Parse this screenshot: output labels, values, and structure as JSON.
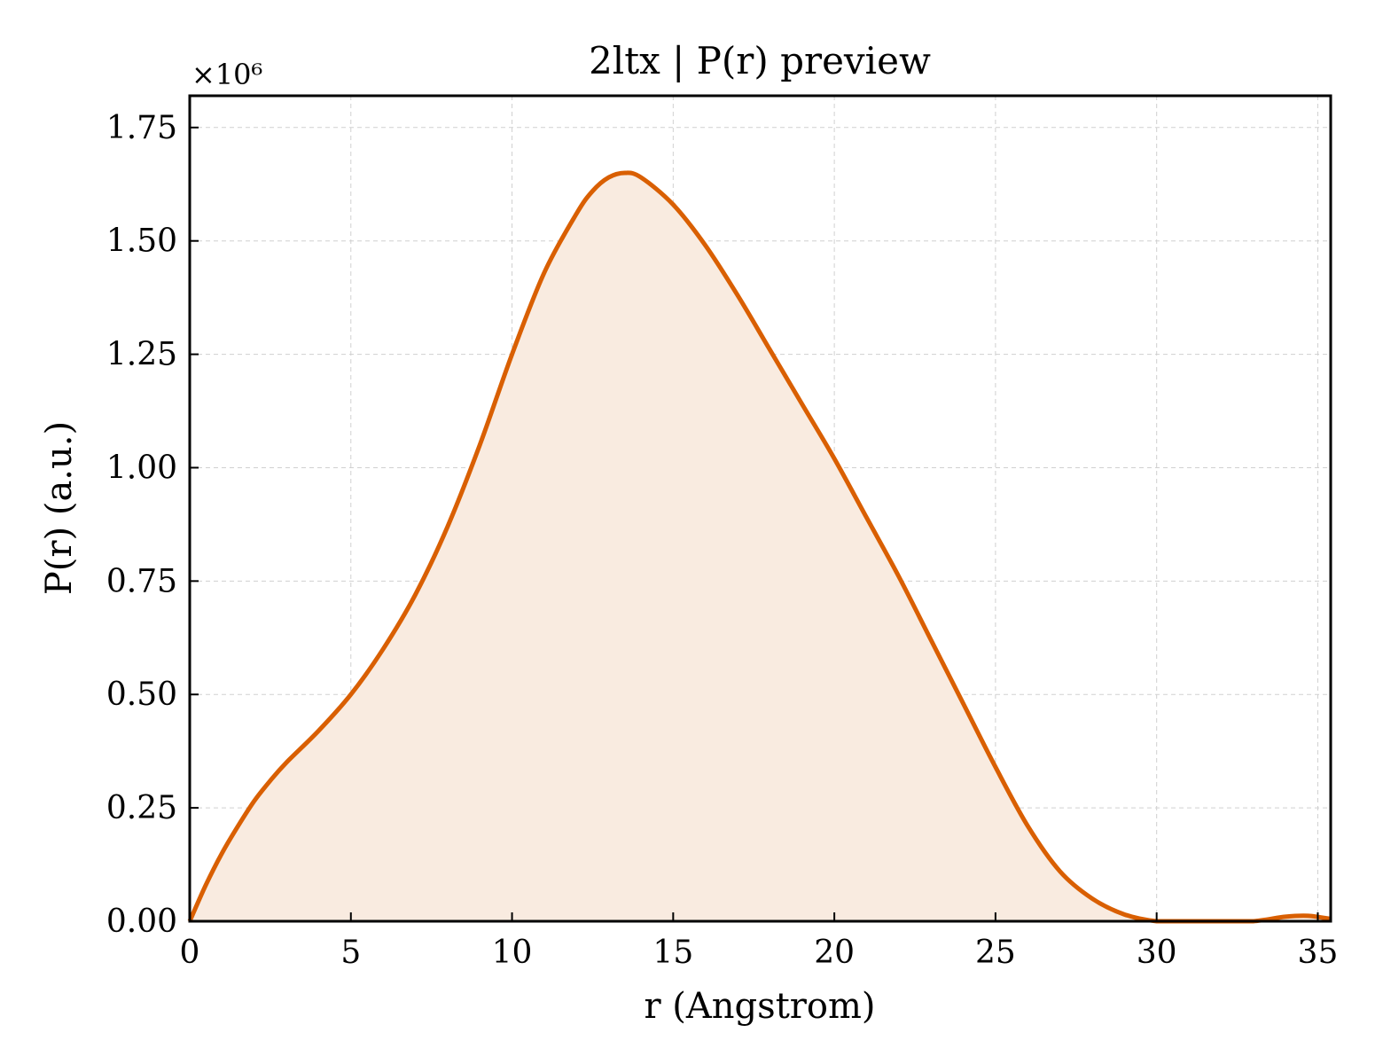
{
  "chart_data": {
    "type": "area",
    "title": "2ltx | P(r) preview",
    "xlabel": "r (Angstrom)",
    "ylabel": "P(r) (a.u.)",
    "y_multiplier_label": "×10⁶",
    "xlim": [
      0,
      35.4
    ],
    "ylim": [
      0,
      1.82
    ],
    "xticks": [
      0,
      5,
      10,
      15,
      20,
      25,
      30,
      35
    ],
    "xtick_labels": [
      "0",
      "5",
      "10",
      "15",
      "20",
      "25",
      "30",
      "35"
    ],
    "yticks": [
      0,
      0.25,
      0.5,
      0.75,
      1.0,
      1.25,
      1.5,
      1.75
    ],
    "ytick_labels": [
      "0.00",
      "0.25",
      "0.50",
      "0.75",
      "1.00",
      "1.25",
      "1.50",
      "1.75"
    ],
    "grid": true,
    "line_color": "#d95f02",
    "fill_color": "#f9ebe0",
    "series": [
      {
        "x": [
          0,
          0.5,
          1,
          1.5,
          2,
          2.5,
          3,
          4,
          5,
          6,
          7,
          8,
          9,
          10,
          11,
          12,
          12.5,
          13,
          13.5,
          14,
          15,
          16,
          17,
          18,
          19,
          20,
          21,
          22,
          23,
          24,
          25,
          26,
          27,
          28,
          29,
          30,
          31,
          32,
          33,
          34,
          34.7,
          35.4
        ],
        "y": [
          0,
          0.08,
          0.15,
          0.21,
          0.265,
          0.31,
          0.35,
          0.42,
          0.5,
          0.6,
          0.72,
          0.87,
          1.05,
          1.25,
          1.43,
          1.56,
          1.61,
          1.64,
          1.65,
          1.64,
          1.58,
          1.49,
          1.38,
          1.26,
          1.14,
          1.02,
          0.89,
          0.76,
          0.62,
          0.48,
          0.34,
          0.21,
          0.11,
          0.05,
          0.015,
          0,
          0,
          0,
          0,
          0.01,
          0.012,
          0.005
        ]
      }
    ]
  }
}
